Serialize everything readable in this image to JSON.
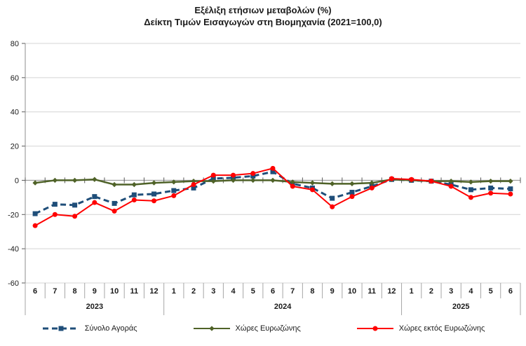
{
  "chart_data": {
    "type": "line",
    "title_line1": "Εξέλιξη ετήσιων μεταβολών (%)",
    "title_line2": "Δείκτη Τιμών Εισαγωγών στη Βιομηχανία (2021=100,0)",
    "ylim": [
      -60,
      80
    ],
    "yticks": [
      80,
      60,
      40,
      20,
      0,
      -20,
      -40,
      -60
    ],
    "grid": true,
    "legend_position": "bottom",
    "x_labels": [
      "6",
      "7",
      "8",
      "9",
      "10",
      "11",
      "12",
      "1",
      "2",
      "3",
      "4",
      "5",
      "6",
      "7",
      "8",
      "9",
      "10",
      "11",
      "12",
      "1",
      "2",
      "3",
      "4",
      "5",
      "6"
    ],
    "year_groups": [
      {
        "label": "2023",
        "span": 7
      },
      {
        "label": "2024",
        "span": 12
      },
      {
        "label": "2025",
        "span": 6
      }
    ],
    "series": [
      {
        "name": "Σύνολο Αγοράς",
        "color": "#1F4E79",
        "style": "dashed",
        "marker": "square",
        "values": [
          -19.5,
          -14,
          -14.5,
          -9.5,
          -13.5,
          -8.5,
          -8,
          -6,
          -4.5,
          1,
          1.5,
          2.5,
          5,
          -2,
          -4.5,
          -10.5,
          -7,
          -3.5,
          0.5,
          0,
          -0.5,
          -2.5,
          -5.5,
          -4.5,
          -5
        ]
      },
      {
        "name": "Χώρες Ευρωζώνης",
        "color": "#4F6228",
        "style": "solid",
        "marker": "diamond",
        "values": [
          -1.5,
          0,
          0,
          0.5,
          -2.5,
          -2.5,
          -1.5,
          -1,
          -0.5,
          -0.5,
          0,
          0,
          0,
          -1,
          -1.5,
          -2,
          -2,
          -1.5,
          0.5,
          0,
          -0.5,
          -0.5,
          -1,
          -0.5,
          -0.5
        ]
      },
      {
        "name": "Χώρες εκτός Ευρωζώνης",
        "color": "#FF0000",
        "style": "solid",
        "marker": "circle",
        "values": [
          -26.5,
          -20,
          -21,
          -13,
          -18,
          -11.5,
          -12,
          -9,
          -2.5,
          3,
          3,
          4,
          7,
          -3.5,
          -5.5,
          -15.5,
          -9.5,
          -4.5,
          1,
          0.5,
          -0.5,
          -3.5,
          -10,
          -7.5,
          -8
        ]
      }
    ],
    "colors": {
      "gridline": "#D4D4D4",
      "axis": "#8C8C8C",
      "tick": "#595959",
      "separator": "#A6A6A6",
      "text": "#1A1A1A"
    }
  }
}
